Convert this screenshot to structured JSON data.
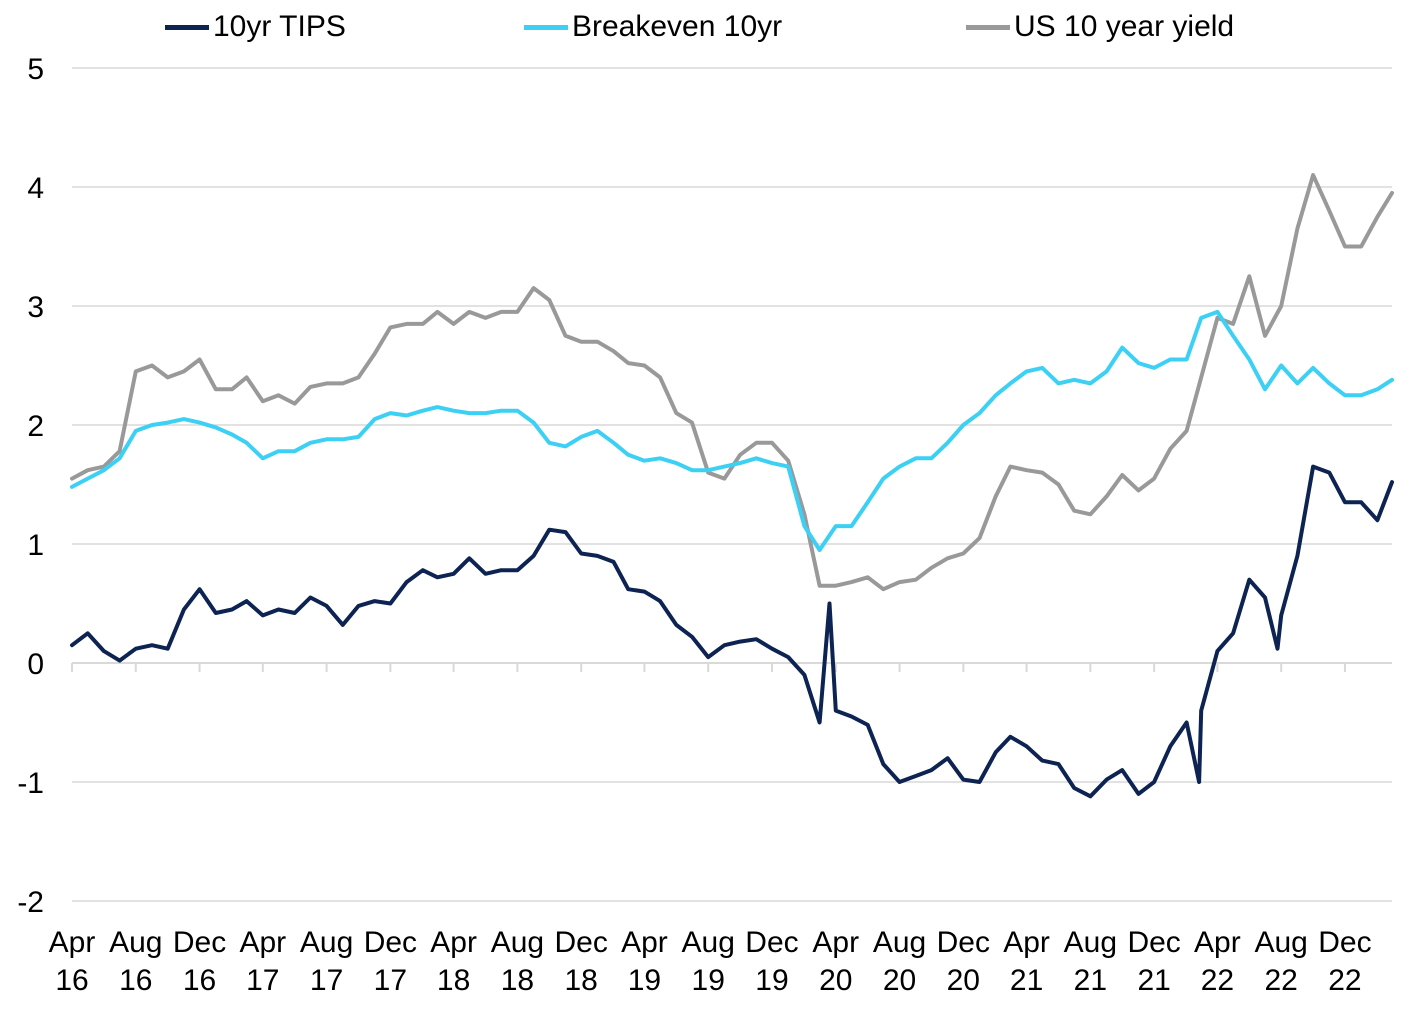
{
  "chart_data": {
    "type": "line",
    "title": "",
    "xlabel": "",
    "ylabel": "",
    "ylim": [
      -2,
      5
    ],
    "yticks": [
      5,
      4,
      3,
      2,
      1,
      0,
      -1,
      -2
    ],
    "xticks": [
      {
        "month": "Apr",
        "year": "16",
        "date": "2016-04"
      },
      {
        "month": "Aug",
        "year": "16",
        "date": "2016-08"
      },
      {
        "month": "Dec",
        "year": "16",
        "date": "2016-12"
      },
      {
        "month": "Apr",
        "year": "17",
        "date": "2017-04"
      },
      {
        "month": "Aug",
        "year": "17",
        "date": "2017-08"
      },
      {
        "month": "Dec",
        "year": "17",
        "date": "2017-12"
      },
      {
        "month": "Apr",
        "year": "18",
        "date": "2018-04"
      },
      {
        "month": "Aug",
        "year": "18",
        "date": "2018-08"
      },
      {
        "month": "Dec",
        "year": "18",
        "date": "2018-12"
      },
      {
        "month": "Apr",
        "year": "19",
        "date": "2019-04"
      },
      {
        "month": "Aug",
        "year": "19",
        "date": "2019-08"
      },
      {
        "month": "Dec",
        "year": "19",
        "date": "2019-12"
      },
      {
        "month": "Apr",
        "year": "20",
        "date": "2020-04"
      },
      {
        "month": "Aug",
        "year": "20",
        "date": "2020-08"
      },
      {
        "month": "Dec",
        "year": "20",
        "date": "2020-12"
      },
      {
        "month": "Apr",
        "year": "21",
        "date": "2021-04"
      },
      {
        "month": "Aug",
        "year": "21",
        "date": "2021-08"
      },
      {
        "month": "Dec",
        "year": "21",
        "date": "2021-12"
      },
      {
        "month": "Apr",
        "year": "22",
        "date": "2022-04"
      },
      {
        "month": "Aug",
        "year": "22",
        "date": "2022-08"
      },
      {
        "month": "Dec",
        "year": "22",
        "date": "2022-12"
      }
    ],
    "grid": true,
    "legend_position": "top",
    "x_start": "2016-04",
    "x_end": "2023-03",
    "series": [
      {
        "name": "10yr TIPS",
        "color": "#0d2352",
        "points": [
          [
            "2016-04",
            0.15
          ],
          [
            "2016-05",
            0.25
          ],
          [
            "2016-06",
            0.1
          ],
          [
            "2016-07",
            0.02
          ],
          [
            "2016-08",
            0.12
          ],
          [
            "2016-09",
            0.15
          ],
          [
            "2016-10",
            0.12
          ],
          [
            "2016-11",
            0.45
          ],
          [
            "2016-12",
            0.62
          ],
          [
            "2017-01",
            0.42
          ],
          [
            "2017-02",
            0.45
          ],
          [
            "2017-03",
            0.52
          ],
          [
            "2017-04",
            0.4
          ],
          [
            "2017-05",
            0.45
          ],
          [
            "2017-06",
            0.42
          ],
          [
            "2017-07",
            0.55
          ],
          [
            "2017-08",
            0.48
          ],
          [
            "2017-09",
            0.32
          ],
          [
            "2017-10",
            0.48
          ],
          [
            "2017-11",
            0.52
          ],
          [
            "2017-12",
            0.5
          ],
          [
            "2018-01",
            0.68
          ],
          [
            "2018-02",
            0.78
          ],
          [
            "2018-03",
            0.72
          ],
          [
            "2018-04",
            0.75
          ],
          [
            "2018-05",
            0.88
          ],
          [
            "2018-06",
            0.75
          ],
          [
            "2018-07",
            0.78
          ],
          [
            "2018-08",
            0.78
          ],
          [
            "2018-09",
            0.9
          ],
          [
            "2018-10",
            1.12
          ],
          [
            "2018-11",
            1.1
          ],
          [
            "2018-12",
            0.92
          ],
          [
            "2019-01",
            0.9
          ],
          [
            "2019-02",
            0.85
          ],
          [
            "2019-03",
            0.62
          ],
          [
            "2019-04",
            0.6
          ],
          [
            "2019-05",
            0.52
          ],
          [
            "2019-06",
            0.32
          ],
          [
            "2019-07",
            0.22
          ],
          [
            "2019-08",
            0.05
          ],
          [
            "2019-09",
            0.15
          ],
          [
            "2019-10",
            0.18
          ],
          [
            "2019-11",
            0.2
          ],
          [
            "2019-12",
            0.12
          ],
          [
            "2020-01",
            0.05
          ],
          [
            "2020-02",
            -0.1
          ],
          [
            "2020-03",
            -0.5
          ],
          [
            "2020-03-20",
            0.5
          ],
          [
            "2020-04",
            -0.4
          ],
          [
            "2020-05",
            -0.45
          ],
          [
            "2020-06",
            -0.52
          ],
          [
            "2020-07",
            -0.85
          ],
          [
            "2020-08",
            -1.0
          ],
          [
            "2020-09",
            -0.95
          ],
          [
            "2020-10",
            -0.9
          ],
          [
            "2020-11",
            -0.8
          ],
          [
            "2020-12",
            -0.98
          ],
          [
            "2021-01",
            -1.0
          ],
          [
            "2021-02",
            -0.75
          ],
          [
            "2021-03",
            -0.62
          ],
          [
            "2021-04",
            -0.7
          ],
          [
            "2021-05",
            -0.82
          ],
          [
            "2021-06",
            -0.85
          ],
          [
            "2021-07",
            -1.05
          ],
          [
            "2021-08",
            -1.12
          ],
          [
            "2021-09",
            -0.98
          ],
          [
            "2021-10",
            -0.9
          ],
          [
            "2021-11",
            -1.1
          ],
          [
            "2021-12",
            -1.0
          ],
          [
            "2022-01",
            -0.7
          ],
          [
            "2022-02",
            -0.5
          ],
          [
            "2022-02-25",
            -1.0
          ],
          [
            "2022-03",
            -0.4
          ],
          [
            "2022-04",
            0.1
          ],
          [
            "2022-05",
            0.25
          ],
          [
            "2022-06",
            0.7
          ],
          [
            "2022-07",
            0.55
          ],
          [
            "2022-07-25",
            0.12
          ],
          [
            "2022-08",
            0.4
          ],
          [
            "2022-09",
            0.9
          ],
          [
            "2022-10",
            1.65
          ],
          [
            "2022-11",
            1.6
          ],
          [
            "2022-12",
            1.35
          ],
          [
            "2023-01",
            1.35
          ],
          [
            "2023-02",
            1.2
          ],
          [
            "2023-03",
            1.52
          ]
        ]
      },
      {
        "name": "Breakeven 10yr",
        "color": "#3cd0f4",
        "points": [
          [
            "2016-04",
            1.48
          ],
          [
            "2016-05",
            1.55
          ],
          [
            "2016-06",
            1.62
          ],
          [
            "2016-07",
            1.72
          ],
          [
            "2016-08",
            1.95
          ],
          [
            "2016-09",
            2.0
          ],
          [
            "2016-10",
            2.02
          ],
          [
            "2016-11",
            2.05
          ],
          [
            "2016-12",
            2.02
          ],
          [
            "2017-01",
            1.98
          ],
          [
            "2017-02",
            1.92
          ],
          [
            "2017-03",
            1.85
          ],
          [
            "2017-04",
            1.72
          ],
          [
            "2017-05",
            1.78
          ],
          [
            "2017-06",
            1.78
          ],
          [
            "2017-07",
            1.85
          ],
          [
            "2017-08",
            1.88
          ],
          [
            "2017-09",
            1.88
          ],
          [
            "2017-10",
            1.9
          ],
          [
            "2017-11",
            2.05
          ],
          [
            "2017-12",
            2.1
          ],
          [
            "2018-01",
            2.08
          ],
          [
            "2018-02",
            2.12
          ],
          [
            "2018-03",
            2.15
          ],
          [
            "2018-04",
            2.12
          ],
          [
            "2018-05",
            2.1
          ],
          [
            "2018-06",
            2.1
          ],
          [
            "2018-07",
            2.12
          ],
          [
            "2018-08",
            2.12
          ],
          [
            "2018-09",
            2.02
          ],
          [
            "2018-10",
            1.85
          ],
          [
            "2018-11",
            1.82
          ],
          [
            "2018-12",
            1.9
          ],
          [
            "2019-01",
            1.95
          ],
          [
            "2019-02",
            1.85
          ],
          [
            "2019-03",
            1.75
          ],
          [
            "2019-04",
            1.7
          ],
          [
            "2019-05",
            1.72
          ],
          [
            "2019-06",
            1.68
          ],
          [
            "2019-07",
            1.62
          ],
          [
            "2019-08",
            1.62
          ],
          [
            "2019-09",
            1.65
          ],
          [
            "2019-10",
            1.68
          ],
          [
            "2019-11",
            1.72
          ],
          [
            "2019-12",
            1.68
          ],
          [
            "2020-01",
            1.65
          ],
          [
            "2020-02",
            1.15
          ],
          [
            "2020-03",
            0.95
          ],
          [
            "2020-04",
            1.15
          ],
          [
            "2020-05",
            1.15
          ],
          [
            "2020-06",
            1.35
          ],
          [
            "2020-07",
            1.55
          ],
          [
            "2020-08",
            1.65
          ],
          [
            "2020-09",
            1.72
          ],
          [
            "2020-10",
            1.72
          ],
          [
            "2020-11",
            1.85
          ],
          [
            "2020-12",
            2.0
          ],
          [
            "2021-01",
            2.1
          ],
          [
            "2021-02",
            2.25
          ],
          [
            "2021-03",
            2.35
          ],
          [
            "2021-04",
            2.45
          ],
          [
            "2021-05",
            2.48
          ],
          [
            "2021-06",
            2.35
          ],
          [
            "2021-07",
            2.38
          ],
          [
            "2021-08",
            2.35
          ],
          [
            "2021-09",
            2.45
          ],
          [
            "2021-10",
            2.65
          ],
          [
            "2021-11",
            2.52
          ],
          [
            "2021-12",
            2.48
          ],
          [
            "2022-01",
            2.55
          ],
          [
            "2022-02",
            2.55
          ],
          [
            "2022-03",
            2.9
          ],
          [
            "2022-04",
            2.95
          ],
          [
            "2022-05",
            2.75
          ],
          [
            "2022-06",
            2.55
          ],
          [
            "2022-07",
            2.3
          ],
          [
            "2022-08",
            2.5
          ],
          [
            "2022-09",
            2.35
          ],
          [
            "2022-10",
            2.48
          ],
          [
            "2022-11",
            2.35
          ],
          [
            "2022-12",
            2.25
          ],
          [
            "2023-01",
            2.25
          ],
          [
            "2023-02",
            2.3
          ],
          [
            "2023-03",
            2.38
          ]
        ]
      },
      {
        "name": "US 10 year yield",
        "color": "#999999",
        "points": [
          [
            "2016-04",
            1.55
          ],
          [
            "2016-05",
            1.62
          ],
          [
            "2016-06",
            1.65
          ],
          [
            "2016-07",
            1.78
          ],
          [
            "2016-08",
            2.45
          ],
          [
            "2016-09",
            2.5
          ],
          [
            "2016-10",
            2.4
          ],
          [
            "2016-11",
            2.45
          ],
          [
            "2016-12",
            2.55
          ],
          [
            "2017-01",
            2.3
          ],
          [
            "2017-02",
            2.3
          ],
          [
            "2017-03",
            2.4
          ],
          [
            "2017-04",
            2.2
          ],
          [
            "2017-05",
            2.25
          ],
          [
            "2017-06",
            2.18
          ],
          [
            "2017-07",
            2.32
          ],
          [
            "2017-08",
            2.35
          ],
          [
            "2017-09",
            2.35
          ],
          [
            "2017-10",
            2.4
          ],
          [
            "2017-11",
            2.6
          ],
          [
            "2017-12",
            2.82
          ],
          [
            "2018-01",
            2.85
          ],
          [
            "2018-02",
            2.85
          ],
          [
            "2018-03",
            2.95
          ],
          [
            "2018-04",
            2.85
          ],
          [
            "2018-05",
            2.95
          ],
          [
            "2018-06",
            2.9
          ],
          [
            "2018-07",
            2.95
          ],
          [
            "2018-08",
            2.95
          ],
          [
            "2018-09",
            3.15
          ],
          [
            "2018-10",
            3.05
          ],
          [
            "2018-11",
            2.75
          ],
          [
            "2018-12",
            2.7
          ],
          [
            "2019-01",
            2.7
          ],
          [
            "2019-02",
            2.62
          ],
          [
            "2019-03",
            2.52
          ],
          [
            "2019-04",
            2.5
          ],
          [
            "2019-05",
            2.4
          ],
          [
            "2019-06",
            2.1
          ],
          [
            "2019-07",
            2.02
          ],
          [
            "2019-08",
            1.6
          ],
          [
            "2019-09",
            1.55
          ],
          [
            "2019-10",
            1.75
          ],
          [
            "2019-11",
            1.85
          ],
          [
            "2019-12",
            1.85
          ],
          [
            "2020-01",
            1.7
          ],
          [
            "2020-02",
            1.25
          ],
          [
            "2020-03",
            0.65
          ],
          [
            "2020-04",
            0.65
          ],
          [
            "2020-05",
            0.68
          ],
          [
            "2020-06",
            0.72
          ],
          [
            "2020-07",
            0.62
          ],
          [
            "2020-08",
            0.68
          ],
          [
            "2020-09",
            0.7
          ],
          [
            "2020-10",
            0.8
          ],
          [
            "2020-11",
            0.88
          ],
          [
            "2020-12",
            0.92
          ],
          [
            "2021-01",
            1.05
          ],
          [
            "2021-02",
            1.4
          ],
          [
            "2021-03",
            1.65
          ],
          [
            "2021-04",
            1.62
          ],
          [
            "2021-05",
            1.6
          ],
          [
            "2021-06",
            1.5
          ],
          [
            "2021-07",
            1.28
          ],
          [
            "2021-08",
            1.25
          ],
          [
            "2021-09",
            1.4
          ],
          [
            "2021-10",
            1.58
          ],
          [
            "2021-11",
            1.45
          ],
          [
            "2021-12",
            1.55
          ],
          [
            "2022-01",
            1.8
          ],
          [
            "2022-02",
            1.95
          ],
          [
            "2022-03",
            2.4
          ],
          [
            "2022-04",
            2.9
          ],
          [
            "2022-05",
            2.85
          ],
          [
            "2022-06",
            3.25
          ],
          [
            "2022-07",
            2.75
          ],
          [
            "2022-08",
            3.0
          ],
          [
            "2022-09",
            3.65
          ],
          [
            "2022-10",
            4.1
          ],
          [
            "2022-11",
            3.8
          ],
          [
            "2022-12",
            3.5
          ],
          [
            "2023-01",
            3.5
          ],
          [
            "2023-02",
            3.75
          ],
          [
            "2023-03",
            3.95
          ]
        ]
      }
    ]
  }
}
